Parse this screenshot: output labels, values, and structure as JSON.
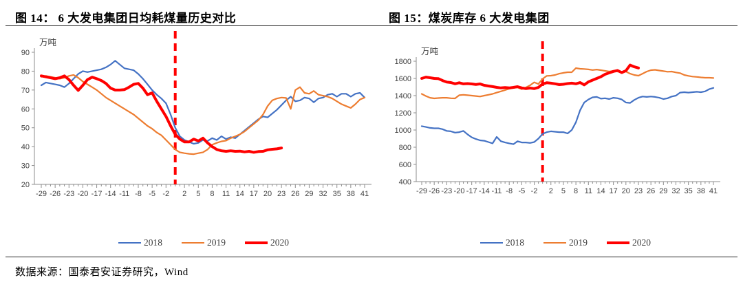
{
  "page": {
    "source_note": "数据来源：国泰君安证券研究，Wind"
  },
  "colors": {
    "series_2018": "#4472C4",
    "series_2019": "#ED7D31",
    "series_2020": "#FF0000",
    "event_dash_line": "#FF0000",
    "axis_text": "#404040",
    "axis_line": "#8C8C8C"
  },
  "chart_data": [
    {
      "type": "line",
      "title": "图 14：  6 大发电集团日均耗煤量历史对比",
      "ylabel": "万吨",
      "x_range": [
        -29,
        41
      ],
      "ylim": [
        20,
        90
      ],
      "y_ticks": [
        20,
        30,
        40,
        50,
        60,
        70,
        80,
        90
      ],
      "x_tick_labels": [
        -29,
        -26,
        -23,
        -20,
        -17,
        -14,
        -11,
        -8,
        -5,
        -2,
        2,
        5,
        8,
        11,
        14,
        17,
        20,
        23,
        26,
        29,
        32,
        35,
        38,
        41
      ],
      "annotation_line_x": 0,
      "legend_position": "bottom",
      "series": [
        {
          "name": "2018",
          "color": "#4472C4",
          "width": 2.2,
          "x_start": -29,
          "values": [
            72.5,
            74,
            73.5,
            73,
            72.5,
            71.5,
            73.5,
            76,
            78.5,
            80,
            79.5,
            80,
            80.5,
            81,
            82,
            83.5,
            85.5,
            83.5,
            81.5,
            81,
            80.5,
            78.5,
            76,
            73,
            70,
            67.5,
            65.5,
            63,
            57,
            50,
            45.5,
            43.5,
            42.5,
            41.5,
            42,
            43.5,
            43,
            44.5,
            43.5,
            45.5,
            44,
            45,
            44.5,
            46.5,
            48.5,
            50.5,
            52.5,
            54.5,
            56,
            55.5,
            57.5,
            59.5,
            62,
            64.5,
            66.5,
            64,
            64.5,
            66,
            65.5,
            63.5,
            65.5,
            66,
            67.5,
            68,
            66.5,
            68,
            68,
            66.5,
            68,
            68.5,
            66
          ]
        },
        {
          "name": "2019",
          "color": "#ED7D31",
          "width": 2.2,
          "x_start": -29,
          "values": [
            77,
            77.5,
            77,
            76.5,
            76,
            76.5,
            77.5,
            78,
            76.5,
            74.5,
            73,
            71.5,
            70,
            68,
            66,
            64.5,
            63,
            61.5,
            60,
            58.5,
            57,
            55,
            53,
            51,
            49.5,
            47.5,
            46,
            43.5,
            41,
            38.5,
            37,
            36.5,
            36.2,
            36,
            36.5,
            37,
            38.5,
            41,
            42,
            42.8,
            43.2,
            44.5,
            45.5,
            46.5,
            48,
            50,
            52,
            54,
            57,
            61.5,
            64.5,
            65.5,
            66,
            65.8,
            60,
            70,
            71.5,
            68.5,
            68,
            69.5,
            67.5,
            67,
            66.5,
            65.5,
            64,
            62.5,
            61.5,
            60.5,
            62.5,
            65,
            66
          ]
        },
        {
          "name": "2020",
          "color": "#FF0000",
          "width": 4,
          "x_start": -29,
          "values": [
            77.5,
            77,
            76.5,
            76,
            76.5,
            77.5,
            75.5,
            72.5,
            69.8,
            72.5,
            75.5,
            76.8,
            76,
            75,
            73.5,
            71,
            70,
            70,
            70.2,
            71.5,
            73,
            73.5,
            71,
            67.5,
            68.5,
            64,
            60,
            56,
            51,
            46.5,
            44,
            42.5,
            42.5,
            44,
            43,
            44.5,
            42,
            40,
            38.5,
            37.8,
            37.5,
            37.8,
            37.5,
            37.6,
            37.2,
            37.5,
            37,
            37.4,
            37.5,
            38.3,
            38.6,
            38.8,
            39.3
          ]
        }
      ]
    },
    {
      "type": "line",
      "title": "图 15：煤炭库存 6 大发电集团",
      "ylabel": "万吨",
      "x_range": [
        -29,
        41
      ],
      "ylim": [
        400,
        1800
      ],
      "y_ticks": [
        400,
        600,
        800,
        1000,
        1200,
        1400,
        1600,
        1800
      ],
      "x_tick_labels": [
        -29,
        -26,
        -23,
        -20,
        -17,
        -14,
        -11,
        -8,
        -5,
        -2,
        2,
        5,
        8,
        11,
        14,
        17,
        20,
        23,
        26,
        29,
        32,
        35,
        38,
        41
      ],
      "annotation_line_x": 0,
      "legend_position": "bottom",
      "series": [
        {
          "name": "2018",
          "color": "#4472C4",
          "width": 2.2,
          "x_start": -29,
          "values": [
            1045,
            1035,
            1025,
            1020,
            1020,
            1010,
            990,
            985,
            970,
            975,
            990,
            950,
            915,
            895,
            880,
            875,
            860,
            845,
            920,
            870,
            855,
            845,
            835,
            870,
            855,
            855,
            850,
            860,
            900,
            955,
            975,
            985,
            980,
            975,
            975,
            960,
            1000,
            1090,
            1230,
            1320,
            1355,
            1380,
            1385,
            1365,
            1370,
            1360,
            1375,
            1370,
            1355,
            1320,
            1315,
            1350,
            1375,
            1390,
            1385,
            1390,
            1385,
            1375,
            1360,
            1370,
            1390,
            1400,
            1435,
            1440,
            1435,
            1440,
            1445,
            1440,
            1450,
            1475,
            1490
          ]
        },
        {
          "name": "2019",
          "color": "#ED7D31",
          "width": 2.2,
          "x_start": -29,
          "values": [
            1420,
            1395,
            1375,
            1368,
            1372,
            1375,
            1375,
            1370,
            1368,
            1405,
            1410,
            1405,
            1400,
            1395,
            1390,
            1400,
            1410,
            1420,
            1435,
            1450,
            1465,
            1480,
            1490,
            1495,
            1475,
            1495,
            1520,
            1555,
            1535,
            1595,
            1630,
            1632,
            1640,
            1655,
            1665,
            1672,
            1672,
            1720,
            1712,
            1710,
            1705,
            1698,
            1703,
            1696,
            1688,
            1680,
            1688,
            1680,
            1672,
            1680,
            1655,
            1640,
            1632,
            1655,
            1680,
            1696,
            1700,
            1692,
            1685,
            1678,
            1680,
            1670,
            1662,
            1640,
            1630,
            1622,
            1618,
            1612,
            1608,
            1608,
            1605
          ]
        },
        {
          "name": "2020",
          "color": "#FF0000",
          "width": 4,
          "x_start": -29,
          "values": [
            1600,
            1615,
            1608,
            1600,
            1598,
            1575,
            1558,
            1552,
            1538,
            1550,
            1537,
            1540,
            1536,
            1530,
            1536,
            1520,
            1512,
            1505,
            1496,
            1490,
            1494,
            1490,
            1496,
            1504,
            1490,
            1482,
            1488,
            1482,
            1495,
            1535,
            1550,
            1545,
            1538,
            1528,
            1532,
            1540,
            1545,
            1538,
            1552,
            1525,
            1560,
            1580,
            1600,
            1620,
            1648,
            1665,
            1682,
            1692,
            1668,
            1690,
            1755,
            1735,
            1722
          ]
        }
      ]
    }
  ]
}
